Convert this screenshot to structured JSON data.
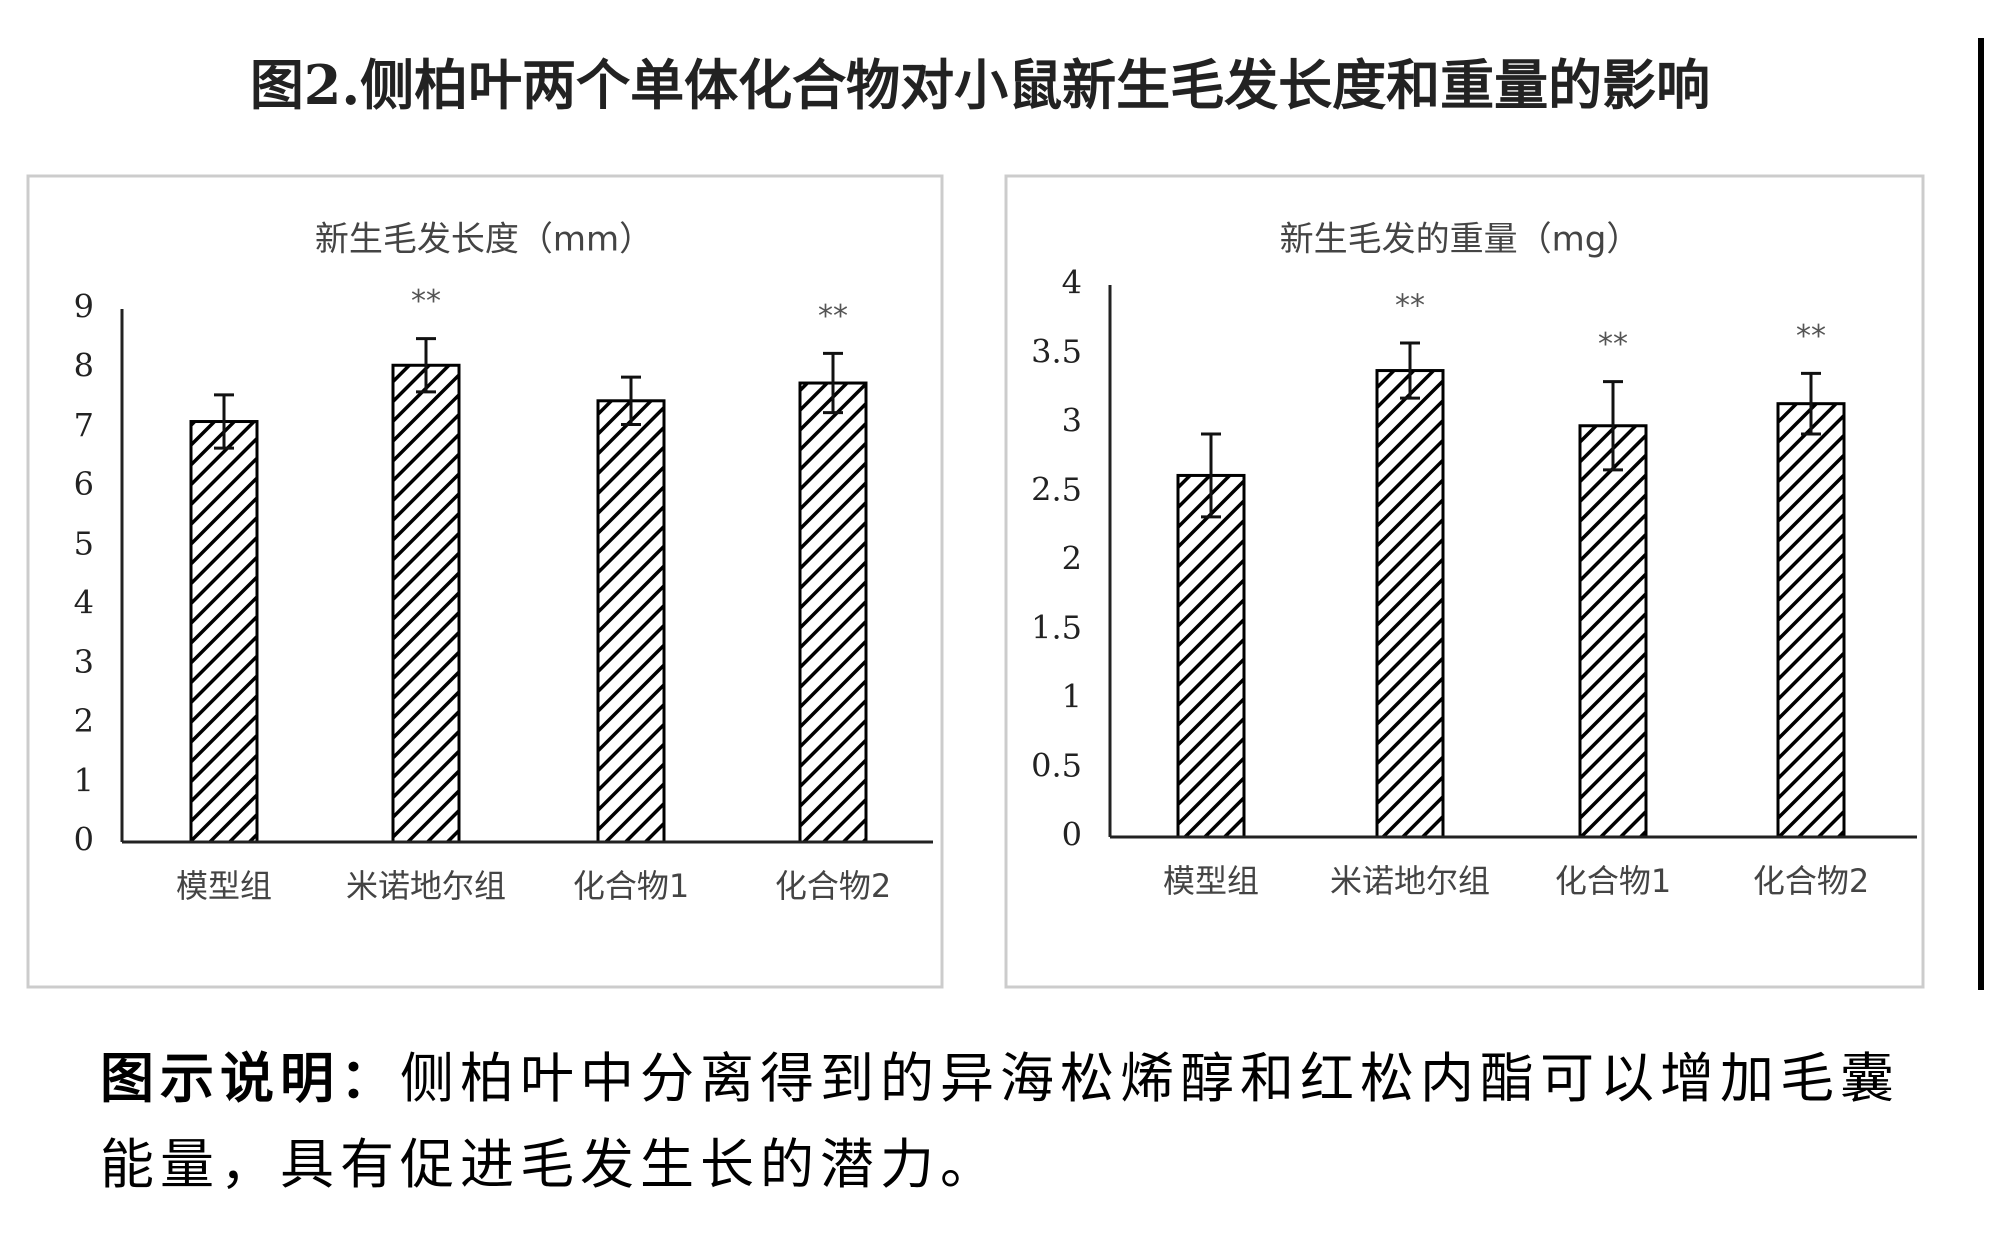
{
  "figure_title": "图2.侧柏叶两个单体化合物对小鼠新生毛发长度和重量的影响",
  "chart_data": [
    {
      "type": "bar",
      "title": "新生毛发长度（mm）",
      "categories": [
        "模型组",
        "米诺地尔组",
        "化合物1",
        "化合物2"
      ],
      "values": [
        7.1,
        8.05,
        7.45,
        7.75
      ],
      "errors": [
        0.45,
        0.45,
        0.4,
        0.5
      ],
      "annotations": [
        null,
        "**",
        null,
        "**"
      ],
      "color": "#000000",
      "ylim": [
        0,
        9
      ],
      "yticks": [
        0,
        1,
        2,
        3,
        4,
        5,
        6,
        7,
        8,
        9
      ]
    },
    {
      "type": "bar",
      "title": "新生毛发的重量（mg）",
      "categories": [
        "模型组",
        "米诺地尔组",
        "化合物1",
        "化合物2"
      ],
      "values": [
        2.62,
        3.38,
        2.98,
        3.14
      ],
      "errors": [
        0.3,
        0.2,
        0.32,
        0.22
      ],
      "annotations": [
        null,
        "**",
        "**",
        "**"
      ],
      "color": "#000000",
      "ylim": [
        0,
        4
      ],
      "yticks": [
        0,
        0.5,
        1,
        1.5,
        2,
        2.5,
        3,
        3.5,
        4
      ]
    }
  ],
  "caption": {
    "label": "图示说明：",
    "text": "侧柏叶中分离得到的异海松烯醇和红松内酯可以增加毛囊能量，具有促进毛发生长的潜力。"
  }
}
